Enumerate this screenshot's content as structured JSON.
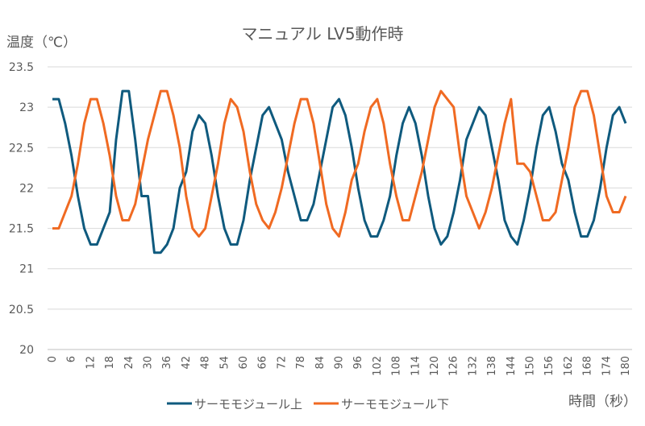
{
  "chart_data": {
    "type": "line",
    "title": "マニュアル LV5動作時",
    "ylabel": "温度（℃）",
    "xlabel": "時間（秒）",
    "ylim": [
      20,
      23.5
    ],
    "yticks": [
      "20",
      "20.5",
      "21",
      "21.5",
      "22",
      "22.5",
      "23",
      "23.5"
    ],
    "xlim": [
      0,
      180
    ],
    "xticks": [
      "0",
      "6",
      "12",
      "18",
      "24",
      "30",
      "36",
      "42",
      "48",
      "54",
      "60",
      "66",
      "72",
      "78",
      "84",
      "90",
      "96",
      "102",
      "108",
      "114",
      "120",
      "126",
      "132",
      "138",
      "144",
      "150",
      "156",
      "162",
      "168",
      "174",
      "180"
    ],
    "grid": true,
    "legend_position": "bottom",
    "x_step": 2,
    "series": [
      {
        "name": "サーモモジュール上",
        "color": "#0F5A7E",
        "values": [
          23.1,
          23.1,
          22.8,
          22.4,
          21.9,
          21.5,
          21.3,
          21.3,
          21.5,
          21.7,
          22.6,
          23.2,
          23.2,
          22.6,
          21.9,
          21.9,
          21.2,
          21.2,
          21.3,
          21.5,
          22.0,
          22.2,
          22.7,
          22.9,
          22.8,
          22.4,
          21.9,
          21.5,
          21.3,
          21.3,
          21.6,
          22.1,
          22.5,
          22.9,
          23.0,
          22.8,
          22.6,
          22.2,
          21.9,
          21.6,
          21.6,
          21.8,
          22.2,
          22.6,
          23.0,
          23.1,
          22.9,
          22.5,
          22.0,
          21.6,
          21.4,
          21.4,
          21.6,
          21.9,
          22.4,
          22.8,
          23.0,
          22.8,
          22.4,
          21.9,
          21.5,
          21.3,
          21.4,
          21.7,
          22.1,
          22.6,
          22.8,
          23.0,
          22.9,
          22.5,
          22.1,
          21.6,
          21.4,
          21.3,
          21.6,
          22.0,
          22.5,
          22.9,
          23.0,
          22.7,
          22.3,
          22.1,
          21.7,
          21.4,
          21.4,
          21.6,
          22.0,
          22.5,
          22.9,
          23.0,
          22.8
        ]
      },
      {
        "name": "サーモモジュール下",
        "color": "#F06A22",
        "values": [
          21.5,
          21.5,
          21.7,
          21.9,
          22.3,
          22.8,
          23.1,
          23.1,
          22.8,
          22.4,
          21.9,
          21.6,
          21.6,
          21.8,
          22.2,
          22.6,
          22.9,
          23.2,
          23.2,
          22.9,
          22.5,
          21.9,
          21.5,
          21.4,
          21.5,
          21.9,
          22.3,
          22.8,
          23.1,
          23.0,
          22.7,
          22.2,
          21.8,
          21.6,
          21.5,
          21.7,
          22.0,
          22.4,
          22.8,
          23.1,
          23.1,
          22.8,
          22.3,
          21.8,
          21.5,
          21.4,
          21.7,
          22.1,
          22.3,
          22.7,
          23.0,
          23.1,
          22.8,
          22.3,
          21.9,
          21.6,
          21.6,
          21.9,
          22.2,
          22.6,
          23.0,
          23.2,
          23.1,
          23.0,
          22.4,
          21.9,
          21.7,
          21.5,
          21.7,
          22.0,
          22.4,
          22.8,
          23.1,
          22.3,
          22.3,
          22.2,
          21.9,
          21.6,
          21.6,
          21.7,
          22.1,
          22.5,
          23.0,
          23.2,
          23.2,
          22.9,
          22.4,
          21.9,
          21.7,
          21.7,
          21.9
        ]
      }
    ]
  }
}
